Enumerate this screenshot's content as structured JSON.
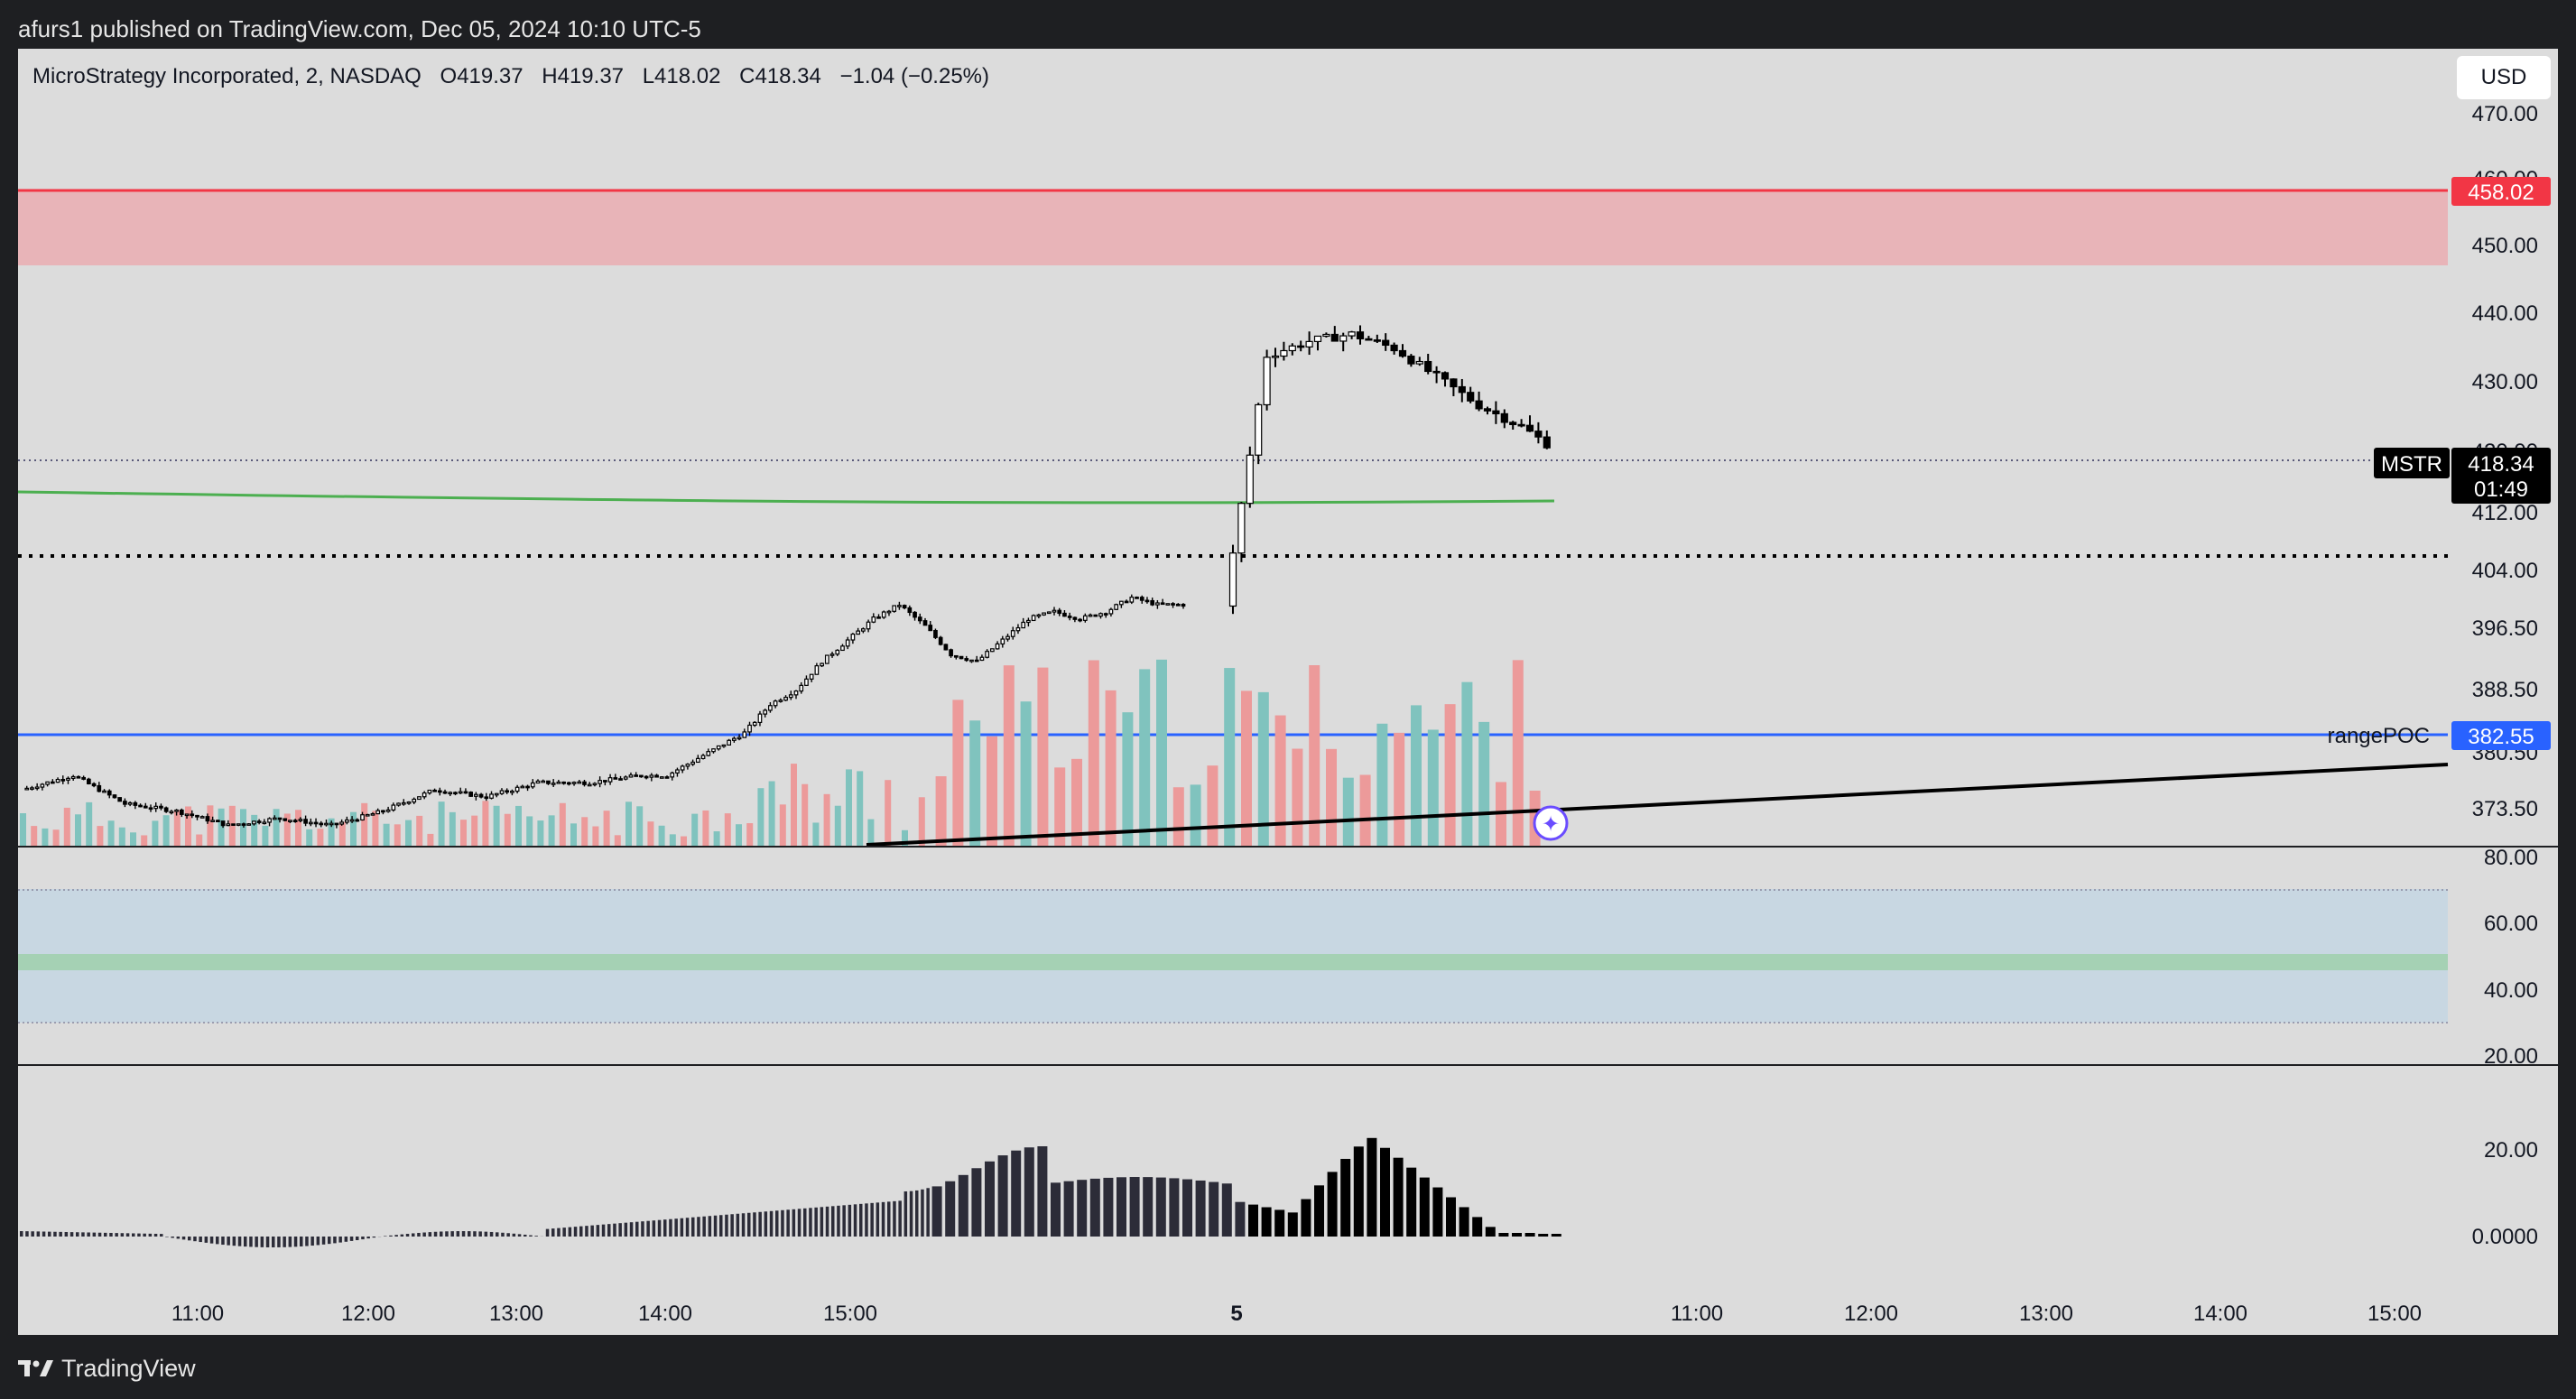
{
  "publish_line": "afurs1 published on TradingView.com, Dec 05, 2024 10:10 UTC-5",
  "legend": {
    "symbol": "MicroStrategy Incorporated, 2, NASDAQ",
    "o_label": "O",
    "o": "419.37",
    "h_label": "H",
    "h": "419.37",
    "l_label": "L",
    "l": "418.02",
    "c_label": "C",
    "c": "418.34",
    "change": "−1.04 (−0.25%)"
  },
  "currency_button": "USD",
  "price_axis": [
    "470.00",
    "460.00",
    "450.00",
    "440.00",
    "430.00",
    "420.00",
    "412.00",
    "404.00",
    "396.50",
    "388.50",
    "380.50",
    "373.50"
  ],
  "rsi_axis": [
    "80.00",
    "60.00",
    "40.00",
    "20.00"
  ],
  "macd_axis": [
    "20.00",
    "0.0000"
  ],
  "time_axis": [
    "11:00",
    "12:00",
    "13:00",
    "14:00",
    "15:00",
    "5",
    "11:00",
    "12:00",
    "13:00",
    "14:00",
    "15:00"
  ],
  "price_tags": {
    "red_level": "458.02",
    "poc_level": "382.55",
    "poc_label": "rangePOC",
    "ticker": "MSTR",
    "last_price": "418.34",
    "countdown": "01:49"
  },
  "brand": "TradingView",
  "colors": {
    "panel_bg": "#dcdcdc",
    "page_bg": "#1e1f22",
    "red_zone": "#e8b4b8",
    "red_line": "#f23645",
    "poc_line": "#2962ff",
    "ma_line": "#4caf50",
    "vol_up": "#80c3be",
    "vol_down": "#ec9a9a",
    "rsi_band": "#c8d7e2",
    "rsi_mid": "#a5d1b4"
  },
  "icons": [
    "star-marker-icon",
    "tradingview-logo-icon"
  ],
  "chart_data": {
    "type": "candlestick",
    "x": [
      "11:00",
      "12:00",
      "13:00",
      "14:00",
      "15:00",
      "5",
      "11:00",
      "12:00",
      "13:00",
      "14:00",
      "15:00"
    ],
    "ohlc_last": {
      "open": 419.37,
      "high": 419.37,
      "low": 418.02,
      "close": 418.34
    },
    "price_path": [
      [
        0,
        379
      ],
      [
        10,
        381
      ],
      [
        20,
        377
      ],
      [
        30,
        376
      ],
      [
        40,
        374
      ],
      [
        50,
        375
      ],
      [
        60,
        374
      ],
      [
        70,
        376
      ],
      [
        80,
        379
      ],
      [
        90,
        378
      ],
      [
        100,
        380
      ],
      [
        110,
        380
      ],
      [
        120,
        381
      ],
      [
        125,
        381
      ],
      [
        130,
        383
      ],
      [
        135,
        385
      ],
      [
        140,
        387
      ],
      [
        145,
        391
      ],
      [
        150,
        393
      ],
      [
        155,
        397
      ],
      [
        160,
        400
      ],
      [
        165,
        403
      ],
      [
        170,
        405
      ],
      [
        175,
        402
      ],
      [
        180,
        398
      ],
      [
        185,
        397
      ],
      [
        190,
        400
      ],
      [
        195,
        403
      ],
      [
        200,
        404
      ],
      [
        205,
        403
      ],
      [
        210,
        404
      ],
      [
        215,
        406
      ],
      [
        220,
        405
      ],
      [
        225,
        405
      ],
      [
        230,
        440
      ],
      [
        235,
        442
      ],
      [
        240,
        443
      ],
      [
        245,
        441
      ],
      [
        250,
        437
      ],
      [
        255,
        433
      ],
      [
        260,
        430
      ],
      [
        265,
        426
      ],
      [
        270,
        423
      ],
      [
        275,
        420
      ],
      [
        280,
        417
      ],
      [
        285,
        418
      ],
      [
        290,
        417
      ],
      [
        295,
        418
      ],
      [
        300,
        418.34
      ]
    ],
    "levels": {
      "supply_zone": [
        448.5,
        458.02
      ],
      "poc": 382.55,
      "dotted": 405.2
    },
    "y_range": [
      371,
      476
    ],
    "rsi_bands": [
      30,
      50,
      70
    ],
    "rsi_range": [
      20,
      80
    ]
  }
}
